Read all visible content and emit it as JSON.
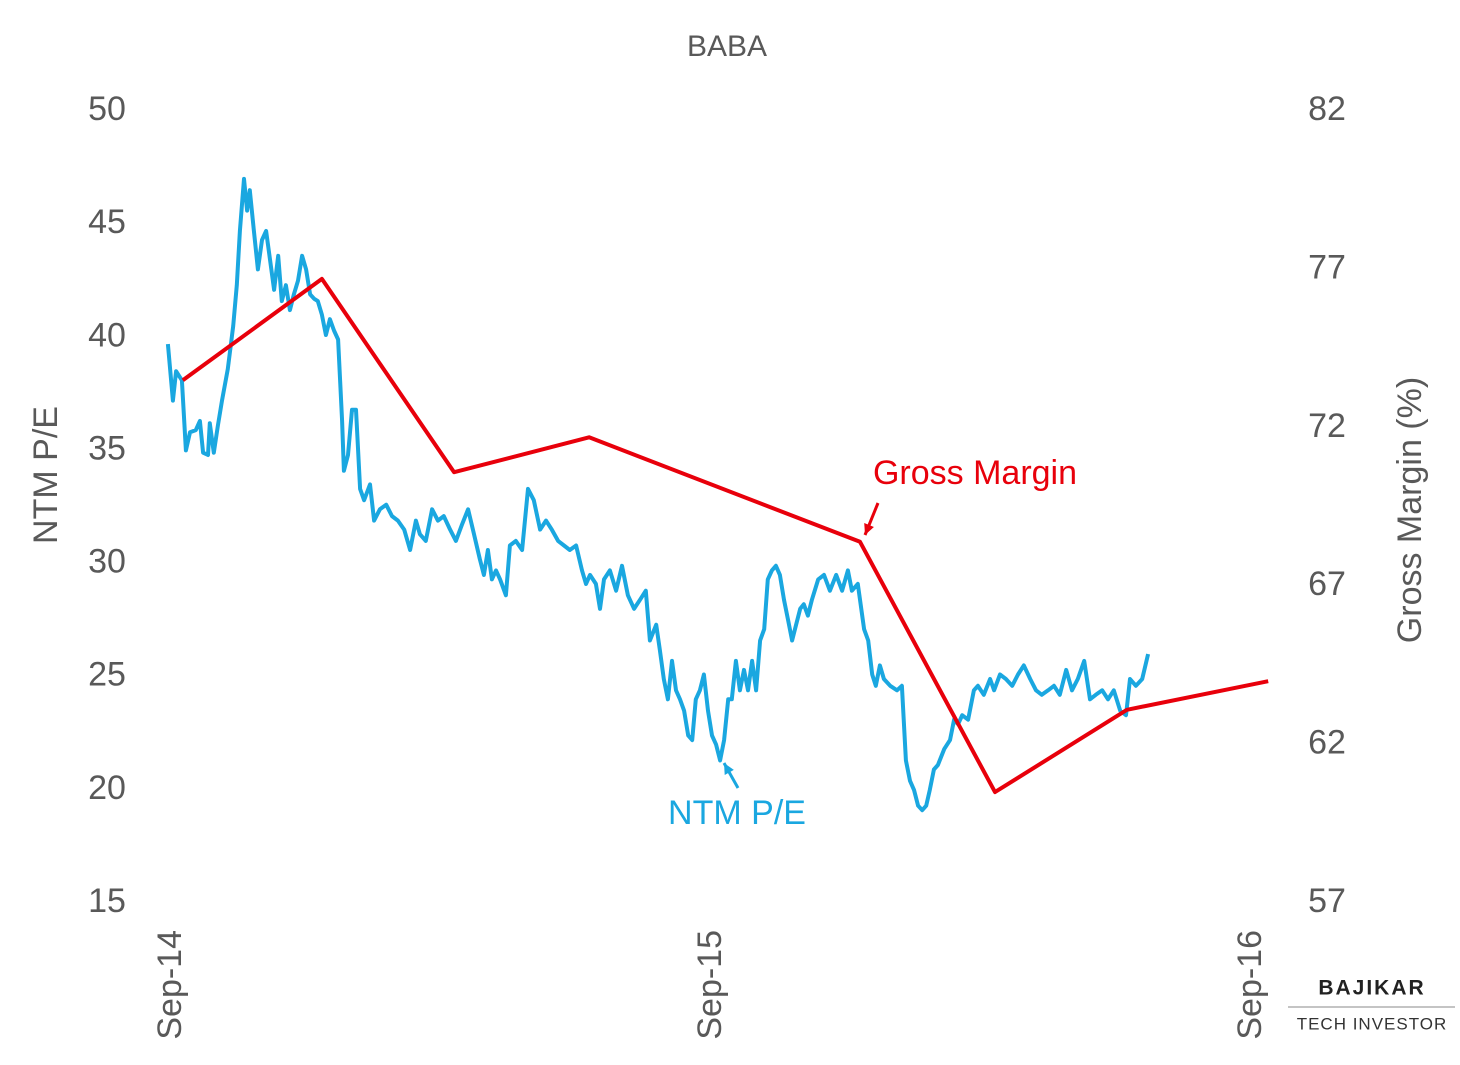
{
  "chart_data": {
    "type": "line",
    "title": "BABA",
    "y_label": "NTM P/E",
    "y2_label": "Gross Margin (%)",
    "xlim": [
      0,
      24
    ],
    "xticks": [
      {
        "value": 0,
        "label": "Sep-14"
      },
      {
        "value": 12,
        "label": "Sep-15"
      },
      {
        "value": 24,
        "label": "Sep-16"
      }
    ],
    "ylim": [
      15,
      50
    ],
    "yticks": [
      15,
      20,
      25,
      30,
      35,
      40,
      45,
      50
    ],
    "y2lim": [
      57,
      82
    ],
    "y2ticks": [
      57,
      62,
      67,
      72,
      77,
      82
    ],
    "grid": false,
    "series": [
      {
        "name": "NTM P/E",
        "color": "#1aa7e0",
        "axis": "y",
        "x": [
          -0.09,
          0.02,
          0.09,
          0.22,
          0.31,
          0.4,
          0.53,
          0.62,
          0.69,
          0.8,
          0.84,
          0.93,
          1.02,
          1.11,
          1.24,
          1.36,
          1.44,
          1.51,
          1.6,
          1.67,
          1.73,
          1.82,
          1.91,
          2.0,
          2.09,
          2.18,
          2.27,
          2.36,
          2.44,
          2.53,
          2.62,
          2.71,
          2.8,
          2.89,
          2.98,
          3.07,
          3.16,
          3.24,
          3.33,
          3.42,
          3.51,
          3.6,
          3.69,
          3.78,
          3.82,
          3.91,
          4.0,
          4.09,
          4.18,
          4.27,
          4.4,
          4.49,
          4.62,
          4.76,
          4.89,
          5.02,
          5.16,
          5.29,
          5.42,
          5.51,
          5.64,
          5.78,
          5.91,
          6.04,
          6.18,
          6.31,
          6.44,
          6.58,
          6.71,
          6.84,
          6.93,
          7.02,
          7.11,
          7.2,
          7.29,
          7.42,
          7.51,
          7.64,
          7.78,
          7.91,
          8.04,
          8.18,
          8.31,
          8.44,
          8.58,
          8.71,
          8.84,
          8.98,
          9.11,
          9.2,
          9.29,
          9.42,
          9.51,
          9.6,
          9.73,
          9.87,
          10.0,
          10.13,
          10.27,
          10.4,
          10.53,
          10.62,
          10.76,
          10.84,
          10.93,
          11.02,
          11.11,
          11.2,
          11.29,
          11.38,
          11.47,
          11.56,
          11.64,
          11.73,
          11.82,
          11.91,
          12.0,
          12.09,
          12.18,
          12.27,
          12.36,
          12.44,
          12.53,
          12.62,
          12.71,
          12.8,
          12.89,
          12.98,
          13.07,
          13.16,
          13.24,
          13.33,
          13.42,
          13.51,
          13.6,
          13.69,
          13.78,
          13.87,
          13.96,
          14.04,
          14.13,
          14.22,
          14.36,
          14.49,
          14.62,
          14.76,
          14.89,
          15.02,
          15.11,
          15.24,
          15.38,
          15.47,
          15.56,
          15.64,
          15.73,
          15.82,
          15.96,
          16.11,
          16.22,
          16.31,
          16.4,
          16.49,
          16.58,
          16.67,
          16.76,
          16.84,
          16.93,
          17.02,
          17.16,
          17.29,
          17.38,
          17.47,
          17.56,
          17.69,
          17.82,
          17.91,
          18.04,
          18.18,
          18.27,
          18.4,
          18.53,
          18.67,
          18.8,
          18.93,
          19.07,
          19.2,
          19.33,
          19.47,
          19.6,
          19.73,
          19.87,
          20.0,
          20.13,
          20.27,
          20.4,
          20.53,
          20.67,
          20.8,
          20.93,
          21.07,
          21.2,
          21.29,
          21.42,
          21.56,
          21.69
        ],
        "values": [
          39.7,
          37.2,
          38.5,
          38.1,
          35.0,
          35.8,
          35.9,
          36.3,
          34.9,
          34.8,
          36.2,
          34.9,
          36.1,
          37.2,
          38.6,
          40.5,
          42.3,
          44.7,
          47.0,
          45.6,
          46.5,
          44.7,
          43.0,
          44.3,
          44.7,
          43.4,
          42.1,
          43.6,
          41.6,
          42.3,
          41.2,
          41.9,
          42.5,
          43.6,
          43.0,
          41.9,
          41.7,
          41.6,
          41.0,
          40.1,
          40.8,
          40.3,
          39.9,
          36.3,
          34.1,
          34.8,
          36.8,
          36.8,
          33.3,
          32.8,
          33.5,
          31.9,
          32.4,
          32.6,
          32.1,
          31.9,
          31.5,
          30.6,
          31.9,
          31.3,
          31.0,
          32.4,
          31.9,
          32.1,
          31.5,
          31.0,
          31.7,
          32.4,
          31.3,
          30.2,
          29.5,
          30.6,
          29.3,
          29.7,
          29.3,
          28.6,
          30.8,
          31.0,
          30.6,
          33.3,
          32.8,
          31.5,
          31.9,
          31.5,
          31.0,
          30.8,
          30.6,
          30.8,
          29.7,
          29.1,
          29.5,
          29.1,
          28.0,
          29.3,
          29.7,
          28.8,
          29.9,
          28.6,
          28.0,
          28.4,
          28.8,
          26.6,
          27.3,
          26.2,
          24.9,
          24.0,
          25.7,
          24.4,
          24.0,
          23.5,
          22.4,
          22.2,
          24.0,
          24.4,
          25.1,
          23.5,
          22.4,
          22.0,
          21.3,
          22.2,
          24.0,
          24.0,
          25.7,
          24.4,
          25.3,
          24.4,
          25.7,
          24.4,
          26.6,
          27.1,
          29.3,
          29.7,
          29.9,
          29.5,
          28.4,
          27.5,
          26.6,
          27.3,
          28.0,
          28.2,
          27.7,
          28.4,
          29.3,
          29.5,
          28.8,
          29.5,
          28.8,
          29.7,
          28.8,
          29.1,
          27.1,
          26.6,
          25.1,
          24.6,
          25.5,
          24.9,
          24.6,
          24.4,
          24.6,
          21.3,
          20.4,
          20.0,
          19.3,
          19.1,
          19.3,
          20.0,
          20.9,
          21.1,
          21.8,
          22.2,
          23.1,
          22.9,
          23.3,
          23.1,
          24.4,
          24.6,
          24.2,
          24.9,
          24.4,
          25.1,
          24.9,
          24.6,
          25.1,
          25.5,
          24.9,
          24.4,
          24.2,
          24.4,
          24.6,
          24.2,
          25.3,
          24.4,
          24.9,
          25.7,
          24.0,
          24.2,
          24.4,
          24.0,
          24.4,
          23.5,
          23.3,
          24.9,
          24.6,
          24.9,
          26.0
        ]
      },
      {
        "name": "Gross Margin",
        "color": "#e8000b",
        "axis": "y2",
        "x": [
          0.24,
          3.33,
          6.27,
          9.27,
          15.29,
          18.29,
          21.22,
          24.36
        ],
        "values": [
          73.5,
          76.7,
          70.6,
          71.7,
          68.4,
          60.5,
          63.1,
          64.0
        ]
      }
    ],
    "watermark": [
      "BAJIKAR",
      "TECH INVESTOR"
    ]
  }
}
